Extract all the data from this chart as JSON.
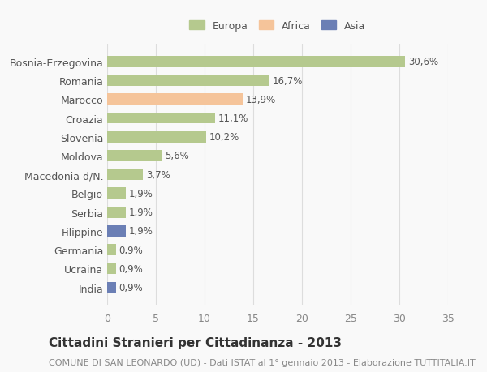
{
  "categories": [
    "Bosnia-Erzegovina",
    "Romania",
    "Marocco",
    "Croazia",
    "Slovenia",
    "Moldova",
    "Macedonia d/N.",
    "Belgio",
    "Serbia",
    "Filippine",
    "Germania",
    "Ucraina",
    "India"
  ],
  "values": [
    30.6,
    16.7,
    13.9,
    11.1,
    10.2,
    5.6,
    3.7,
    1.9,
    1.9,
    1.9,
    0.9,
    0.9,
    0.9
  ],
  "labels": [
    "30,6%",
    "16,7%",
    "13,9%",
    "11,1%",
    "10,2%",
    "5,6%",
    "3,7%",
    "1,9%",
    "1,9%",
    "1,9%",
    "0,9%",
    "0,9%",
    "0,9%"
  ],
  "colors": [
    "#b5c98e",
    "#b5c98e",
    "#f5c49a",
    "#b5c98e",
    "#b5c98e",
    "#b5c98e",
    "#b5c98e",
    "#b5c98e",
    "#b5c98e",
    "#6b7fb5",
    "#b5c98e",
    "#b5c98e",
    "#6b7fb5"
  ],
  "continent": [
    "Europa",
    "Europa",
    "Africa",
    "Europa",
    "Europa",
    "Europa",
    "Europa",
    "Europa",
    "Europa",
    "Asia",
    "Europa",
    "Europa",
    "Asia"
  ],
  "legend_colors": {
    "Europa": "#b5c98e",
    "Africa": "#f5c49a",
    "Asia": "#6b7fb5"
  },
  "xlim": [
    0,
    35
  ],
  "xticks": [
    0,
    5,
    10,
    15,
    20,
    25,
    30,
    35
  ],
  "title": "Cittadini Stranieri per Cittadinanza - 2013",
  "subtitle": "COMUNE DI SAN LEONARDO (UD) - Dati ISTAT al 1° gennaio 2013 - Elaborazione TUTTITALIA.IT",
  "background_color": "#f9f9f9",
  "grid_color": "#dddddd",
  "label_fontsize": 8.5,
  "title_fontsize": 11,
  "subtitle_fontsize": 8
}
